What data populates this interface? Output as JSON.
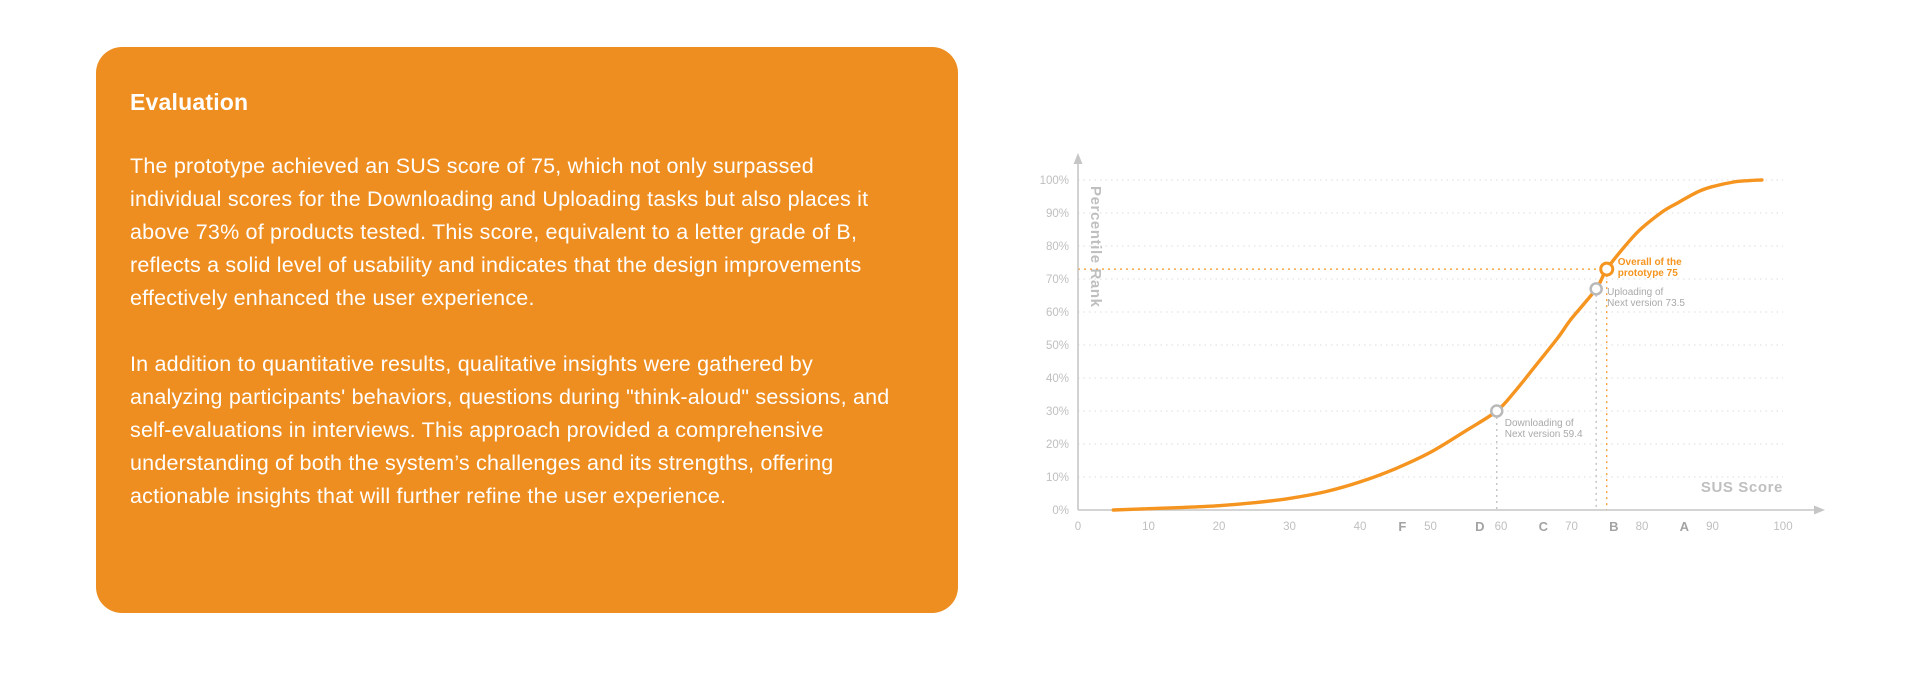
{
  "card": {
    "title": "Evaluation",
    "paragraph1": "The prototype achieved an SUS score of 75, which not only surpassed individual scores for the Downloading and Uploading tasks but also places it above 73% of products tested. This score, equivalent to a letter grade of B, reflects a solid level of usability and indicates that the design improvements effectively enhanced the user experience.",
    "paragraph2": "In addition to quantitative results, qualitative insights were gathered by analyzing participants' behaviors, questions during \"think-aloud\" sessions, and self-evaluations in interviews. This approach provided a comprehensive understanding of both the system’s challenges and its strengths, offering actionable insights that will further refine the user experience."
  },
  "chart": {
    "y_ticks": [
      "0%",
      "10%",
      "20%",
      "30%",
      "40%",
      "50%",
      "60%",
      "70%",
      "80%",
      "90%",
      "100%"
    ],
    "x_ticks": [
      0,
      10,
      20,
      30,
      40,
      50,
      60,
      70,
      80,
      90,
      100
    ],
    "grades": [
      {
        "label": "F",
        "x": 46
      },
      {
        "label": "D",
        "x": 57
      },
      {
        "label": "C",
        "x": 66
      },
      {
        "label": "B",
        "x": 76
      },
      {
        "label": "A",
        "x": 86
      }
    ]
  },
  "chart_data": {
    "type": "line",
    "title": "",
    "xlabel": "SUS Score",
    "ylabel": "Percentile Rank",
    "xlim": [
      0,
      100
    ],
    "ylim": [
      0,
      100
    ],
    "grid": "horizontal-dotted",
    "curve": [
      [
        5,
        0
      ],
      [
        10,
        0.4
      ],
      [
        15,
        0.8
      ],
      [
        20,
        1.3
      ],
      [
        25,
        2.2
      ],
      [
        30,
        3.5
      ],
      [
        35,
        5.5
      ],
      [
        40,
        8.5
      ],
      [
        45,
        12.5
      ],
      [
        50,
        17.5
      ],
      [
        55,
        24
      ],
      [
        59.4,
        30
      ],
      [
        62,
        36
      ],
      [
        65,
        44
      ],
      [
        68,
        52
      ],
      [
        70,
        58
      ],
      [
        73.5,
        67
      ],
      [
        75,
        73
      ],
      [
        78,
        81
      ],
      [
        80,
        85.5
      ],
      [
        83,
        90.5
      ],
      [
        85,
        93
      ],
      [
        88,
        96.5
      ],
      [
        90,
        98
      ],
      [
        93,
        99.4
      ],
      [
        95,
        99.8
      ],
      [
        97,
        100
      ]
    ],
    "markers": [
      {
        "name": "downloading",
        "x": 59.4,
        "y": 30,
        "color": "gray",
        "label_lines": [
          "Downloading of",
          "Next version 59.4"
        ],
        "label_pos": "below-right",
        "guides": [
          "v"
        ]
      },
      {
        "name": "uploading",
        "x": 73.5,
        "y": 67,
        "color": "gray",
        "label_lines": [
          "Uploading of",
          "Next version 73.5"
        ],
        "label_pos": "right",
        "guides": [
          "v"
        ]
      },
      {
        "name": "overall",
        "x": 75,
        "y": 73,
        "color": "accent",
        "label_lines": [
          "Overall of the",
          "prototype 75"
        ],
        "label_pos": "above-right",
        "guides": [
          "v",
          "h"
        ]
      }
    ]
  },
  "colors": {
    "card_bg": "#EE8E20",
    "accent": "#F5941F",
    "axis": "#C6C6C6",
    "grid": "#DCDCDC",
    "tick": "#BFBFBF",
    "grade": "#A3A3A3",
    "marker_gray": "#B9B9B9",
    "label_gray": "#A9A9A9"
  }
}
